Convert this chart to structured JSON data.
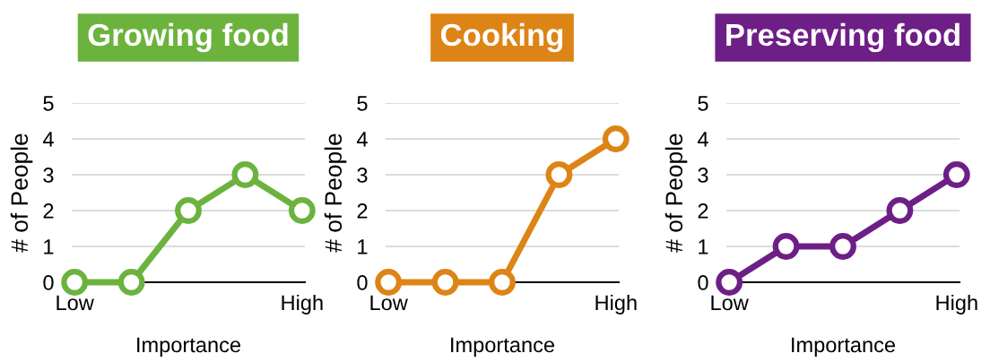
{
  "chart_data": [
    {
      "type": "line",
      "title": "Growing food",
      "xlabel": "Importance",
      "ylabel": "# of People",
      "categories": [
        "Low",
        null,
        null,
        null,
        "High"
      ],
      "series": [
        {
          "color": "#6cb33e",
          "values": [
            0,
            0,
            2,
            3,
            2
          ]
        }
      ],
      "ylim": [
        0,
        5
      ],
      "yticks": [
        0,
        1,
        2,
        3,
        4,
        5
      ],
      "grid": "y",
      "legend": false,
      "marker": "circle",
      "line_style": "solid"
    },
    {
      "type": "line",
      "title": "Cooking",
      "xlabel": "Importance",
      "ylabel": "# of People",
      "categories": [
        "Low",
        null,
        null,
        null,
        "High"
      ],
      "series": [
        {
          "color": "#dd8416",
          "values": [
            0,
            0,
            0,
            3,
            4
          ]
        }
      ],
      "ylim": [
        0,
        5
      ],
      "yticks": [
        0,
        1,
        2,
        3,
        4,
        5
      ],
      "grid": "y",
      "legend": false,
      "marker": "circle",
      "line_style": "solid"
    },
    {
      "type": "line",
      "title": "Preserving food",
      "xlabel": "Importance",
      "ylabel": "# of People",
      "categories": [
        "Low",
        null,
        null,
        null,
        "High"
      ],
      "series": [
        {
          "color": "#6d1f86",
          "values": [
            0,
            1,
            1,
            2,
            3
          ]
        }
      ],
      "ylim": [
        0,
        5
      ],
      "yticks": [
        0,
        1,
        2,
        3,
        4,
        5
      ],
      "grid": "y",
      "legend": false,
      "marker": "circle",
      "line_style": "solid"
    }
  ]
}
